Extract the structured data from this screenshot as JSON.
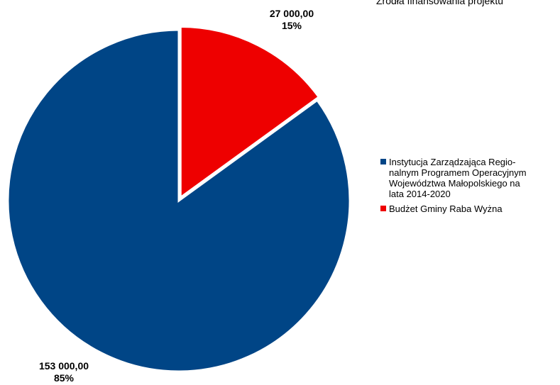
{
  "chart_data": {
    "type": "pie",
    "title": "Źródła finansowania projektu",
    "start_angle_deg": 0,
    "slices": [
      {
        "label": "Budżet Gminy Raba Wyżna",
        "value": 27000,
        "value_label": "27 000,00",
        "percent_label": "15%",
        "color": "#ee0000"
      },
      {
        "label": "Instytucja Zarządzająca Regio-\nnalnym Programem Operacyjnym\nWojewództwa Małopolskiego na\nlata 2014-2020",
        "value": 153000,
        "value_label": "153 000,00",
        "percent_label": "85%",
        "color": "#004586"
      }
    ],
    "legend_order": [
      1,
      0
    ],
    "legend_position": "right"
  }
}
